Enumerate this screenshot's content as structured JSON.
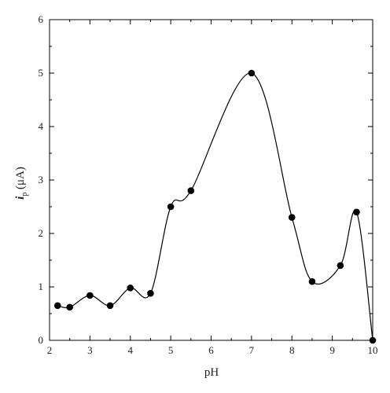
{
  "chart_data": {
    "type": "scatter",
    "xlabel": "pH",
    "ylabel": "i_p (μA)",
    "ylabel_parts": {
      "symbol": "i",
      "subscript": "p",
      "unit": " (μA)"
    },
    "xlim": [
      2,
      10
    ],
    "ylim": [
      0,
      6
    ],
    "xticks": [
      2,
      3,
      4,
      5,
      6,
      7,
      8,
      9,
      10
    ],
    "yticks": [
      0,
      1,
      2,
      3,
      4,
      5,
      6
    ],
    "grid": false,
    "series": [
      {
        "x": [
          2.2,
          2.5,
          3.0,
          3.5,
          4.0,
          4.5,
          5.0,
          5.5,
          7.0,
          8.0,
          8.5,
          9.2,
          9.6,
          10.0
        ],
        "y": [
          0.65,
          0.62,
          0.84,
          0.65,
          0.98,
          0.88,
          2.5,
          2.8,
          5.0,
          2.3,
          1.1,
          1.4,
          2.4,
          0.0
        ],
        "marker": "circle",
        "line": "smooth",
        "color": "#000000"
      }
    ]
  }
}
